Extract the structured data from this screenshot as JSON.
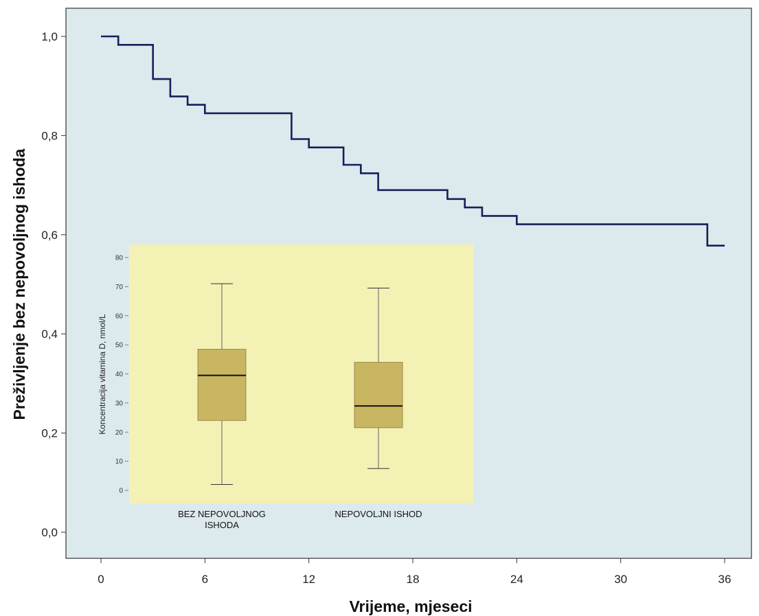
{
  "colors": {
    "plot_background": "#dce9ed",
    "curve": "#14205a",
    "inset_background": "#f4f1b5",
    "box_fill": "#c8b663",
    "axis": "#333333"
  },
  "chart_data": [
    {
      "type": "line",
      "subtype": "kaplan-meier step curve",
      "xlabel": "Vrijeme, mjeseci",
      "ylabel": "Preživljenje bez nepovoljnog ishoda",
      "xlim": [
        0,
        36
      ],
      "ylim": [
        0,
        1
      ],
      "xticks": [
        0,
        6,
        12,
        18,
        24,
        30,
        36
      ],
      "xtick_labels": [
        "0",
        "6",
        "12",
        "18",
        "24",
        "30",
        "36"
      ],
      "yticks": [
        0,
        0.2,
        0.4,
        0.6,
        0.8,
        1.0
      ],
      "ytick_labels": [
        "0,0",
        "0,2",
        "0,4",
        "0,6",
        "0,8",
        "1,0"
      ],
      "grid": false,
      "series": [
        {
          "x": [
            0,
            1,
            3,
            4,
            5,
            6,
            11,
            12,
            14,
            15,
            16,
            20,
            21,
            22,
            24,
            35,
            36
          ],
          "values": [
            1.0,
            0.983,
            0.914,
            0.879,
            0.862,
            0.845,
            0.793,
            0.776,
            0.741,
            0.724,
            0.69,
            0.672,
            0.655,
            0.638,
            0.621,
            0.578,
            0.578
          ]
        }
      ]
    },
    {
      "type": "box",
      "ylabel": "Koncentracija vitamina D, nmol/L",
      "ylim": [
        0,
        80
      ],
      "yticks": [
        0,
        10,
        20,
        30,
        40,
        50,
        60,
        70,
        80
      ],
      "ytick_labels": [
        "0",
        "10",
        "20",
        "30",
        "40",
        "50",
        "60",
        "70",
        "80"
      ],
      "categories": [
        "BEZ NEPOVOLJNOG ISHODA",
        "NEPOVOLJNI ISHOD"
      ],
      "category_label_lines": [
        [
          "BEZ NEPOVOLJNOG",
          "ISHODA"
        ],
        [
          "NEPOVOLJNI ISHOD"
        ]
      ],
      "boxes": [
        {
          "min": 2,
          "q1": 24,
          "median": 39.5,
          "q3": 48.5,
          "max": 71
        },
        {
          "min": 7.5,
          "q1": 21.5,
          "median": 29,
          "q3": 44,
          "max": 69.5
        }
      ]
    }
  ]
}
